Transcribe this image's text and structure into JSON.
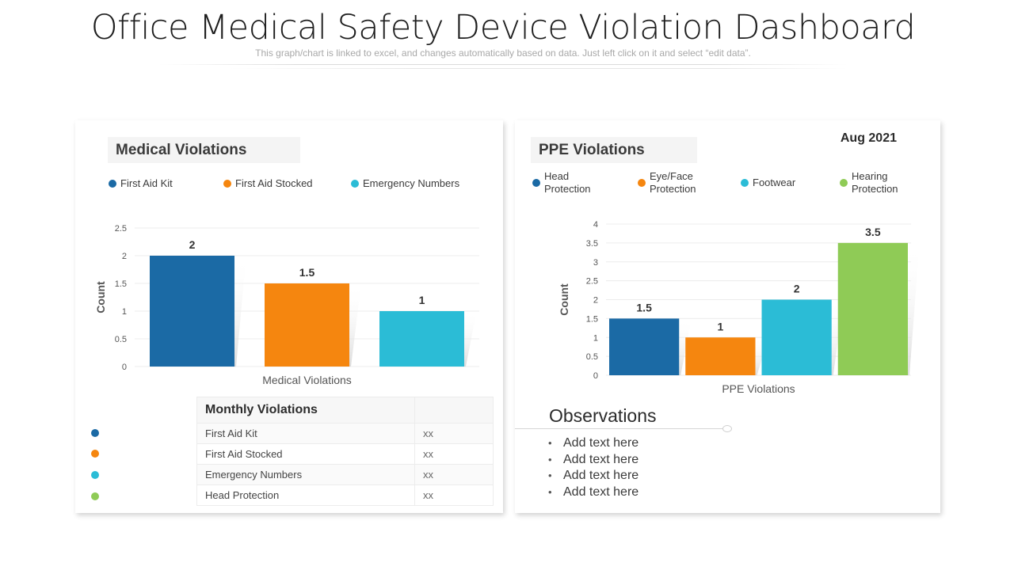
{
  "header": {
    "title": "Office Medical Safety Device Violation Dashboard",
    "subtitle": "This graph/chart is linked to excel, and changes automatically based on data. Just left click on it and select “edit data”."
  },
  "colors": {
    "blue": "#1b6aa5",
    "orange": "#f5860f",
    "cyan": "#2bbcd6",
    "green": "#8fcb56"
  },
  "medical": {
    "title": "Medical Violations",
    "legend": [
      {
        "label": "First Aid Kit",
        "color": "#1b6aa5"
      },
      {
        "label": "First Aid Stocked",
        "color": "#f5860f"
      },
      {
        "label": "Emergency Numbers",
        "color": "#2bbcd6"
      }
    ]
  },
  "ppe": {
    "title": "PPE Violations",
    "date": "Aug 2021",
    "legend": [
      {
        "label_line1": "Head",
        "label_line2": "Protection",
        "color": "#1b6aa5"
      },
      {
        "label_line1": "Eye/Face",
        "label_line2": "Protection",
        "color": "#f5860f"
      },
      {
        "label_line1": "Footwear",
        "label_line2": "",
        "color": "#2bbcd6"
      },
      {
        "label_line1": "Hearing",
        "label_line2": "Protection",
        "color": "#8fcb56"
      }
    ]
  },
  "chart_data": [
    {
      "type": "bar",
      "title": "Medical Violations",
      "categories": [
        "First Aid Kit",
        "First Aid Stocked",
        "Emergency Numbers"
      ],
      "values": [
        2,
        1.5,
        1
      ],
      "data_labels": [
        "2",
        "1.5",
        "1"
      ],
      "colors": [
        "#1b6aa5",
        "#f5860f",
        "#2bbcd6"
      ],
      "xlabel": "Medical Violations",
      "ylabel": "Count",
      "ylim": [
        0,
        2.5
      ],
      "yticks": [
        0,
        0.5,
        1,
        1.5,
        2,
        2.5
      ],
      "ytick_labels": [
        "0",
        "0.5",
        "1",
        "1.5",
        "2",
        "2.5"
      ],
      "grid": true,
      "legend": "top"
    },
    {
      "type": "bar",
      "title": "PPE Violations",
      "categories": [
        "Head Protection",
        "Eye/Face Protection",
        "Footwear",
        "Hearing Protection"
      ],
      "values": [
        1.5,
        1,
        2,
        3.5
      ],
      "data_labels": [
        "1.5",
        "1",
        "2",
        "3.5"
      ],
      "colors": [
        "#1b6aa5",
        "#f5860f",
        "#2bbcd6",
        "#8fcb56"
      ],
      "xlabel": "PPE Violations",
      "ylabel": "Count",
      "ylim": [
        0,
        4
      ],
      "yticks": [
        0,
        0.5,
        1,
        1.5,
        2,
        2.5,
        3,
        3.5,
        4
      ],
      "ytick_labels": [
        "0",
        "0.5",
        "1",
        "1.5",
        "2",
        "2.5",
        "3",
        "3.5",
        "4"
      ],
      "grid": true,
      "legend": "top"
    }
  ],
  "monthly_table": {
    "header": "Monthly Violations",
    "header_value": "",
    "rows": [
      {
        "label": "First Aid Kit",
        "value": "xx",
        "color": "#1b6aa5"
      },
      {
        "label": "First Aid Stocked",
        "value": "xx",
        "color": "#f5860f"
      },
      {
        "label": "Emergency Numbers",
        "value": "xx",
        "color": "#2bbcd6"
      },
      {
        "label": "Head Protection",
        "value": "xx",
        "color": "#8fcb56"
      }
    ]
  },
  "observations": {
    "title": "Observations",
    "items": [
      "Add text here",
      "Add text here",
      "Add text here",
      "Add text here"
    ]
  }
}
